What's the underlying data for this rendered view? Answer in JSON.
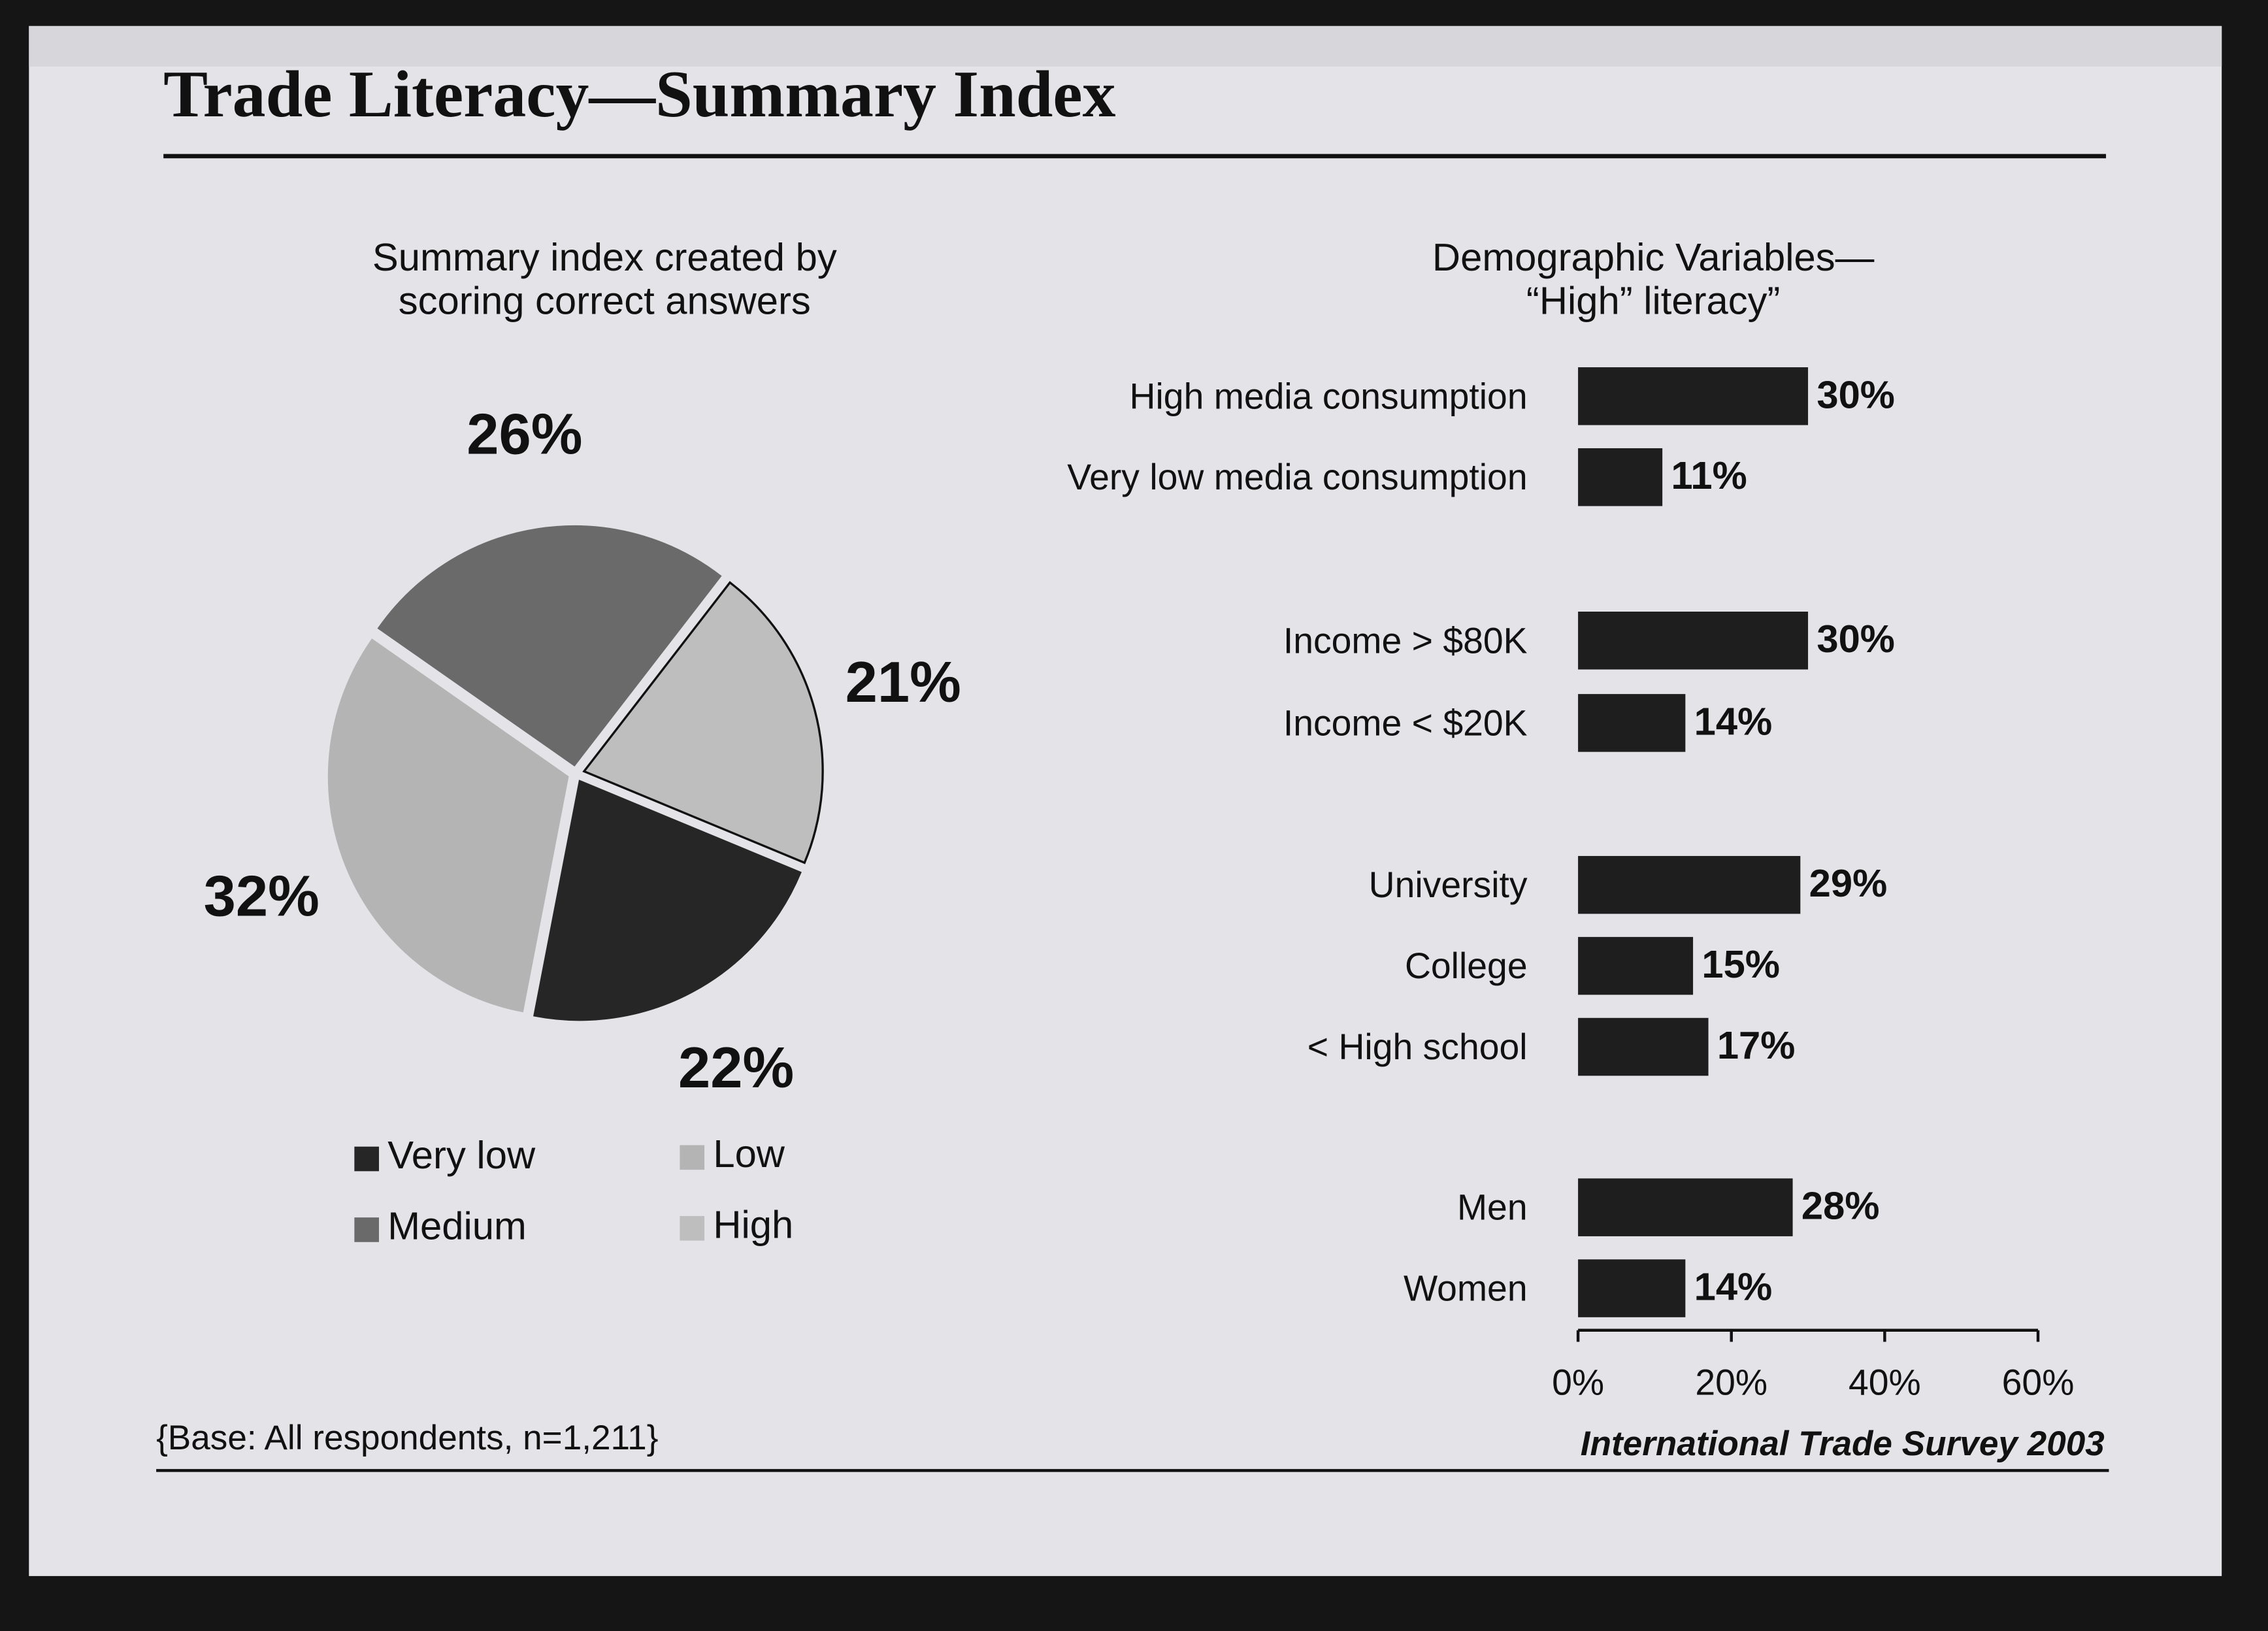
{
  "title": "Trade Literacy—Summary Index",
  "footnote": "{Base: All respondents, n=1,211}",
  "source": "International Trade Survey 2003",
  "chart_data": [
    {
      "type": "pie",
      "subtitle": [
        "Summary index created by",
        "scoring correct answers"
      ],
      "categories": [
        "Very low",
        "Low",
        "Medium",
        "High"
      ],
      "values": [
        22,
        32,
        26,
        21
      ],
      "value_labels": [
        "22%",
        "32%",
        "26%",
        "21%"
      ],
      "colors": [
        "#262626",
        "#b4b4b4",
        "#6a6a6a",
        "#bebebe"
      ],
      "legend": "bottom"
    },
    {
      "type": "barh",
      "subtitle": [
        "Demographic Variables—",
        "“High” literacy”"
      ],
      "categories": [
        "High media consumption",
        "Very low media consumption",
        "Income > $80K",
        "Income < $20K",
        "University",
        "College",
        "< High school",
        "Men",
        "Women"
      ],
      "values": [
        30,
        11,
        30,
        14,
        29,
        15,
        17,
        28,
        14
      ],
      "value_labels": [
        "30%",
        "11%",
        "30%",
        "14%",
        "29%",
        "15%",
        "17%",
        "28%",
        "14%"
      ],
      "color": "#1e1e1e",
      "xlim": [
        0,
        60
      ],
      "xticks": [
        {
          "value": 0,
          "label": "0%"
        },
        {
          "value": 20,
          "label": "20%"
        },
        {
          "value": 40,
          "label": "40%"
        },
        {
          "value": 60,
          "label": "60%"
        }
      ]
    }
  ]
}
